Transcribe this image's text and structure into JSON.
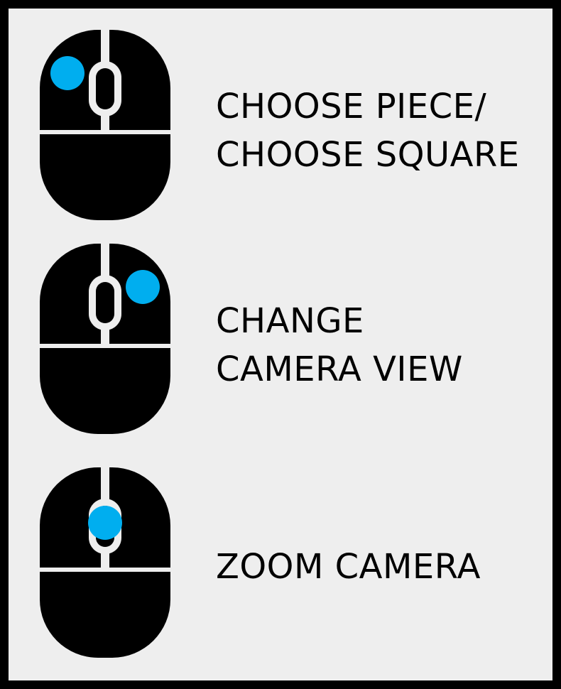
{
  "colors": {
    "frame": "#000000",
    "panel_background": "#eeeeee",
    "mouse_body": "#000000",
    "highlight": "#00aeef"
  },
  "controls": [
    {
      "icon": "mouse-left-click-icon",
      "highlighted_button": "left",
      "label_lines": [
        "CHOOSE PIECE/",
        "CHOOSE SQUARE"
      ]
    },
    {
      "icon": "mouse-right-click-icon",
      "highlighted_button": "right",
      "label_lines": [
        "CHANGE",
        "CAMERA VIEW"
      ]
    },
    {
      "icon": "mouse-scroll-wheel-icon",
      "highlighted_button": "scroll-wheel",
      "label_lines": [
        "ZOOM CAMERA"
      ]
    }
  ]
}
